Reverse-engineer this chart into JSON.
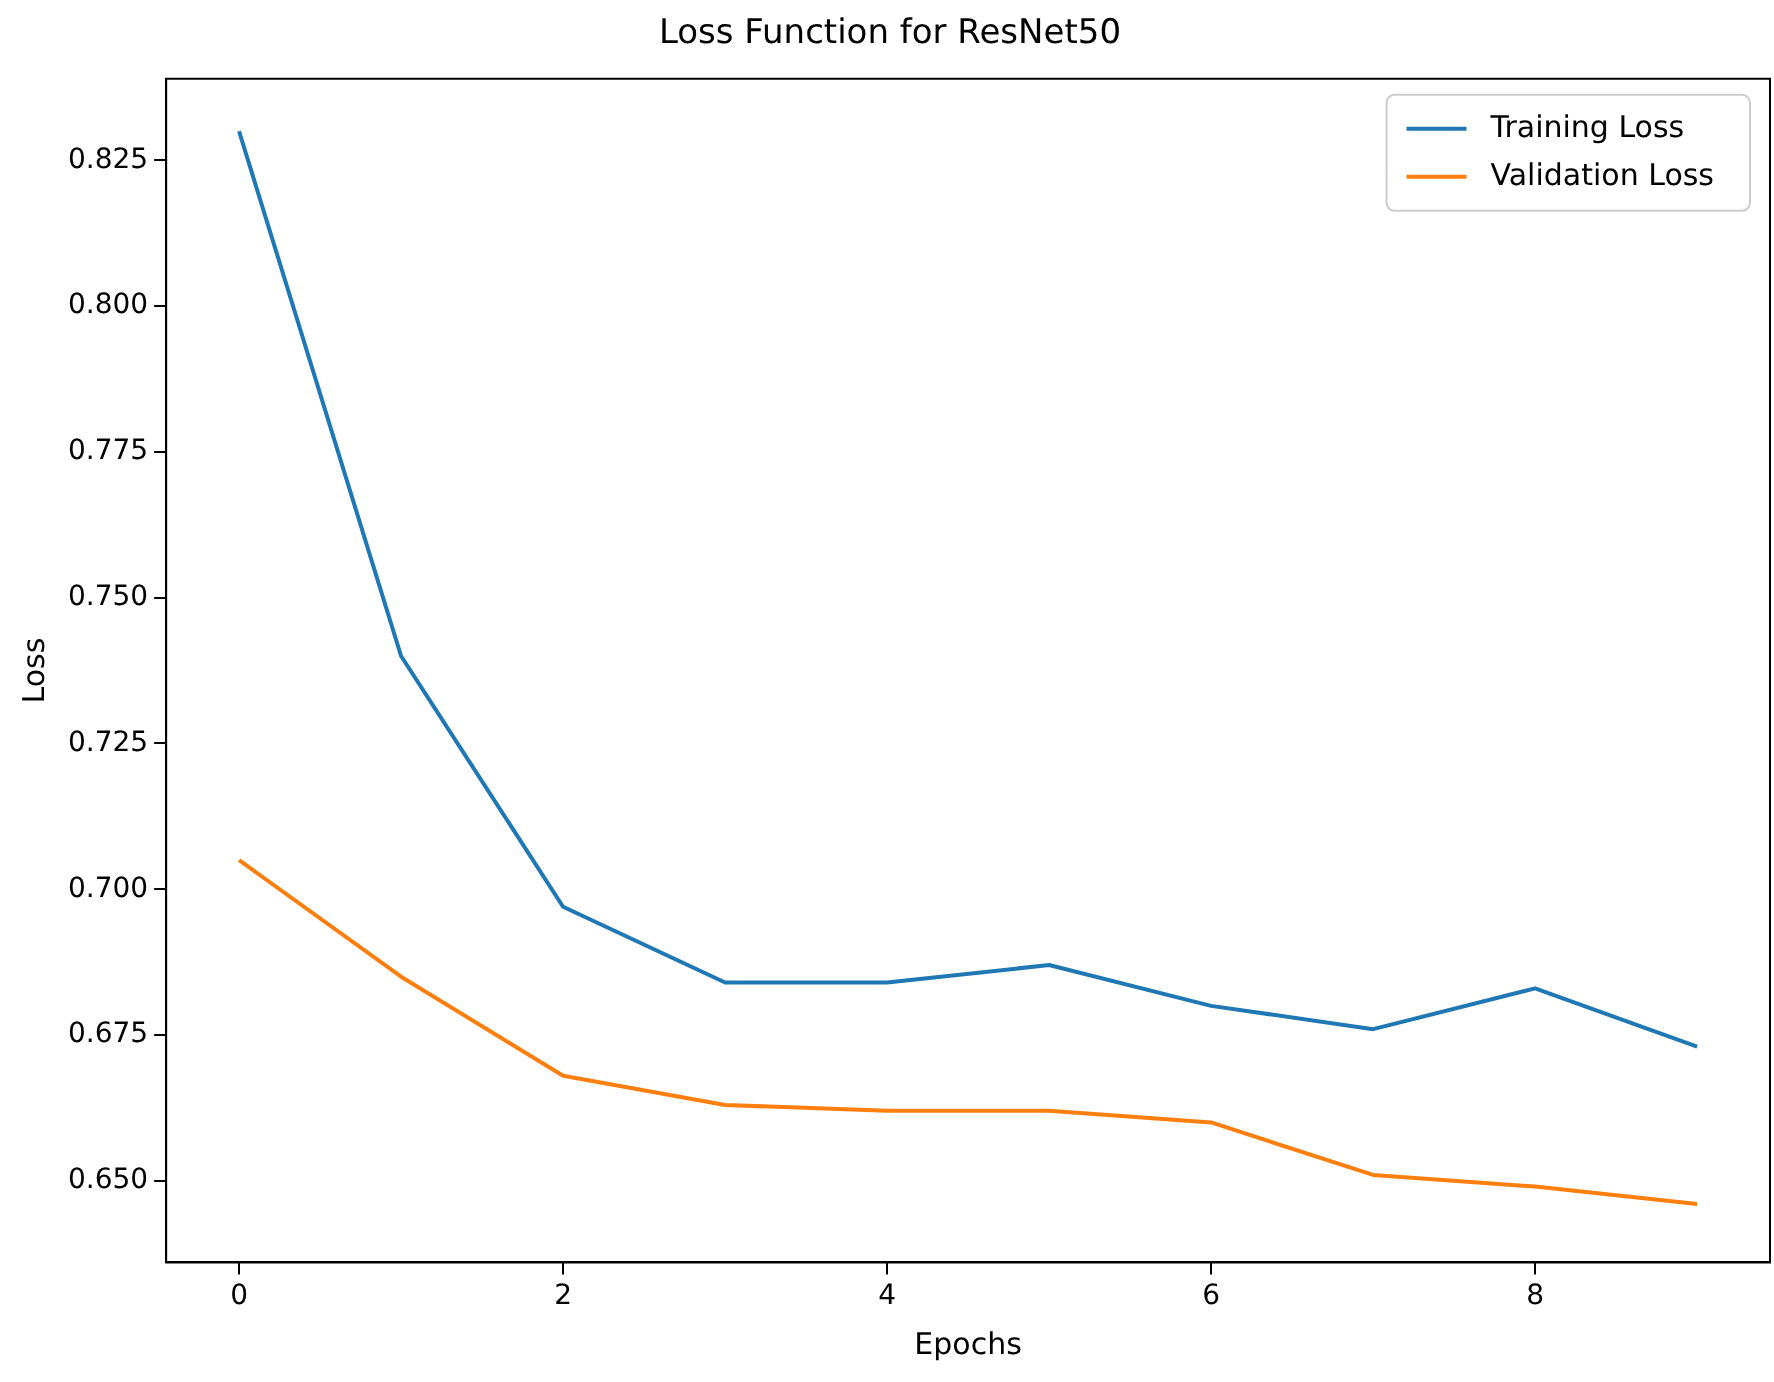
{
  "chart_data": {
    "type": "line",
    "title": "Loss Function for ResNet50",
    "xlabel": "Epochs",
    "ylabel": "Loss",
    "x": [
      0,
      1,
      2,
      3,
      4,
      5,
      6,
      7,
      8,
      9
    ],
    "series": [
      {
        "name": "Training Loss",
        "color": "#1f77b4",
        "values": [
          0.83,
          0.74,
          0.697,
          0.684,
          0.684,
          0.687,
          0.68,
          0.676,
          0.683,
          0.673
        ]
      },
      {
        "name": "Validation Loss",
        "color": "#ff7f0e",
        "values": [
          0.705,
          0.685,
          0.668,
          0.663,
          0.662,
          0.662,
          0.66,
          0.651,
          0.649,
          0.646
        ]
      }
    ],
    "xlim": [
      -0.45,
      9.45
    ],
    "xticks": [
      0,
      2,
      4,
      6,
      8
    ],
    "ylim": [
      0.636,
      0.839
    ],
    "yticks": [
      {
        "value": 0.65,
        "label": "0.650"
      },
      {
        "value": 0.675,
        "label": "0.675"
      },
      {
        "value": 0.7,
        "label": "0.700"
      },
      {
        "value": 0.725,
        "label": "0.725"
      },
      {
        "value": 0.75,
        "label": "0.750"
      },
      {
        "value": 0.775,
        "label": "0.775"
      },
      {
        "value": 0.8,
        "label": "0.800"
      },
      {
        "value": 0.825,
        "label": "0.825"
      }
    ],
    "grid": false,
    "legend": "top right",
    "marker": "none",
    "line_style": "solid"
  }
}
